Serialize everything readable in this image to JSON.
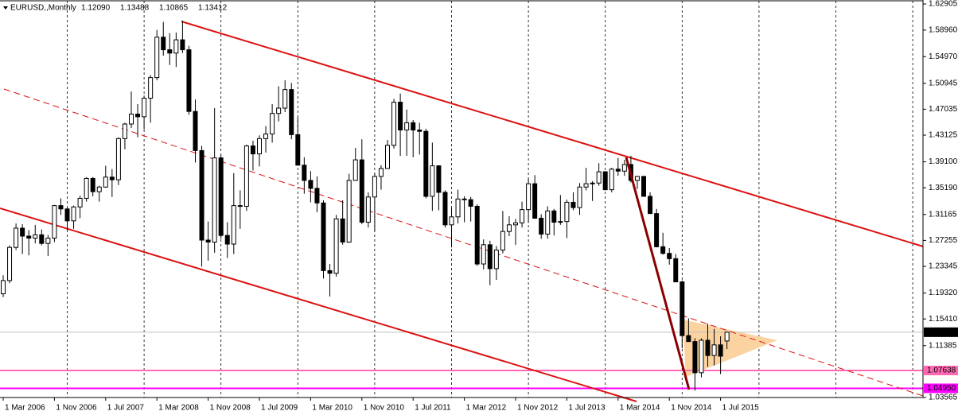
{
  "chart_data": {
    "type": "candlestick",
    "title": "EURUSD,,Monthly",
    "header_values": [
      "1.12090",
      "1.13488",
      "1.10865",
      "1.13412"
    ],
    "ylim": [
      1.03565,
      1.62905
    ],
    "yticks": [
      1.62905,
      {
        "value": 1.5896,
        "label": "1.58960"
      },
      {
        "value": 1.5497,
        "label": "1.54970"
      },
      {
        "value": 1.50945,
        "label": "1.50945"
      },
      {
        "value": 1.47035,
        "label": "1.47035"
      },
      1.43125,
      {
        "value": 1.391,
        "label": "1.39100"
      },
      {
        "value": 1.3519,
        "label": "1.35190"
      },
      1.31165,
      1.27255,
      1.23345,
      {
        "value": 1.1932,
        "label": "1.19320"
      },
      {
        "value": 1.1541,
        "label": "1.15410"
      },
      1.11385,
      1.03565
    ],
    "price_lines": [
      {
        "value": 1.13412,
        "label": "1.13412",
        "color": "#c0c0c0"
      },
      {
        "value": 1.07638,
        "label": "1.07638",
        "color": "#ff69b4"
      },
      {
        "value": 1.0495,
        "label": "1.04950",
        "color": "#ff00ff"
      }
    ],
    "x_labels": [
      "1 Mar 2006",
      "1 Nov 2006",
      "1 Jul 2007",
      "1 Mar 2008",
      "1 Nov 2008",
      "1 Jul 2009",
      "1 Mar 2010",
      "1 Nov 2010",
      "1 Jul 2011",
      "1 Mar 2012",
      "1 Nov 2012",
      "1 Jul 2013",
      "1 Mar 2014",
      "1 Nov 2014",
      "1 Jul 2015"
    ],
    "candles": [
      [
        1.192,
        1.22,
        1.187,
        1.212
      ],
      [
        1.212,
        1.265,
        1.208,
        1.262
      ],
      [
        1.262,
        1.298,
        1.258,
        1.291
      ],
      [
        1.291,
        1.297,
        1.252,
        1.279
      ],
      [
        1.279,
        1.288,
        1.25,
        1.276
      ],
      [
        1.276,
        1.296,
        1.268,
        1.281
      ],
      [
        1.281,
        1.289,
        1.265,
        1.268
      ],
      [
        1.268,
        1.281,
        1.249,
        1.276
      ],
      [
        1.276,
        1.326,
        1.27,
        1.325
      ],
      [
        1.325,
        1.336,
        1.311,
        1.32
      ],
      [
        1.32,
        1.322,
        1.287,
        1.302
      ],
      [
        1.302,
        1.325,
        1.29,
        1.323
      ],
      [
        1.323,
        1.34,
        1.306,
        1.336
      ],
      [
        1.336,
        1.368,
        1.331,
        1.366
      ],
      [
        1.366,
        1.368,
        1.339,
        1.346
      ],
      [
        1.346,
        1.355,
        1.331,
        1.353
      ],
      [
        1.353,
        1.385,
        1.352,
        1.368
      ],
      [
        1.368,
        1.38,
        1.338,
        1.364
      ],
      [
        1.364,
        1.428,
        1.356,
        1.426
      ],
      [
        1.426,
        1.45,
        1.41,
        1.448
      ],
      [
        1.448,
        1.497,
        1.442,
        1.463
      ],
      [
        1.463,
        1.478,
        1.428,
        1.459
      ],
      [
        1.459,
        1.491,
        1.44,
        1.487
      ],
      [
        1.487,
        1.522,
        1.45,
        1.518
      ],
      [
        1.518,
        1.59,
        1.514,
        1.579
      ],
      [
        1.579,
        1.602,
        1.551,
        1.56
      ],
      [
        1.56,
        1.585,
        1.537,
        1.555
      ],
      [
        1.555,
        1.586,
        1.534,
        1.575
      ],
      [
        1.575,
        1.604,
        1.555,
        1.56
      ],
      [
        1.56,
        1.566,
        1.462,
        1.467
      ],
      [
        1.467,
        1.485,
        1.39,
        1.408
      ],
      [
        1.408,
        1.415,
        1.233,
        1.273
      ],
      [
        1.273,
        1.301,
        1.242,
        1.27
      ],
      [
        1.27,
        1.472,
        1.254,
        1.397
      ],
      [
        1.397,
        1.401,
        1.275,
        1.28
      ],
      [
        1.28,
        1.3,
        1.246,
        1.267
      ],
      [
        1.267,
        1.374,
        1.252,
        1.325
      ],
      [
        1.325,
        1.348,
        1.29,
        1.324
      ],
      [
        1.324,
        1.417,
        1.317,
        1.415
      ],
      [
        1.415,
        1.423,
        1.378,
        1.403
      ],
      [
        1.403,
        1.431,
        1.384,
        1.426
      ],
      [
        1.426,
        1.445,
        1.405,
        1.433
      ],
      [
        1.433,
        1.478,
        1.42,
        1.464
      ],
      [
        1.464,
        1.505,
        1.452,
        1.472
      ],
      [
        1.472,
        1.514,
        1.466,
        1.5
      ],
      [
        1.5,
        1.51,
        1.425,
        1.432
      ],
      [
        1.432,
        1.458,
        1.386,
        1.386
      ],
      [
        1.386,
        1.398,
        1.343,
        1.363
      ],
      [
        1.363,
        1.377,
        1.33,
        1.351
      ],
      [
        1.351,
        1.369,
        1.315,
        1.329
      ],
      [
        1.329,
        1.333,
        1.215,
        1.227
      ],
      [
        1.227,
        1.237,
        1.188,
        1.223
      ],
      [
        1.223,
        1.311,
        1.218,
        1.305
      ],
      [
        1.305,
        1.333,
        1.266,
        1.27
      ],
      [
        1.27,
        1.373,
        1.269,
        1.363
      ],
      [
        1.363,
        1.412,
        1.366,
        1.394
      ],
      [
        1.394,
        1.425,
        1.297,
        1.3
      ],
      [
        1.3,
        1.345,
        1.292,
        1.338
      ],
      [
        1.338,
        1.374,
        1.286,
        1.369
      ],
      [
        1.369,
        1.386,
        1.349,
        1.381
      ],
      [
        1.381,
        1.424,
        1.386,
        1.416
      ],
      [
        1.416,
        1.486,
        1.411,
        1.481
      ],
      [
        1.481,
        1.494,
        1.4,
        1.439
      ],
      [
        1.439,
        1.47,
        1.4,
        1.45
      ],
      [
        1.45,
        1.454,
        1.398,
        1.439
      ],
      [
        1.439,
        1.45,
        1.402,
        1.437
      ],
      [
        1.437,
        1.441,
        1.336,
        1.339
      ],
      [
        1.339,
        1.42,
        1.317,
        1.385
      ],
      [
        1.385,
        1.386,
        1.318,
        1.345
      ],
      [
        1.345,
        1.348,
        1.292,
        1.296
      ],
      [
        1.296,
        1.322,
        1.262,
        1.308
      ],
      [
        1.308,
        1.349,
        1.298,
        1.335
      ],
      [
        1.335,
        1.339,
        1.3,
        1.334
      ],
      [
        1.334,
        1.338,
        1.301,
        1.324
      ],
      [
        1.324,
        1.327,
        1.234,
        1.237
      ],
      [
        1.237,
        1.274,
        1.229,
        1.266
      ],
      [
        1.266,
        1.272,
        1.205,
        1.23
      ],
      [
        1.23,
        1.264,
        1.213,
        1.258
      ],
      [
        1.258,
        1.317,
        1.253,
        1.286
      ],
      [
        1.286,
        1.309,
        1.279,
        1.296
      ],
      [
        1.296,
        1.305,
        1.266,
        1.299
      ],
      [
        1.299,
        1.331,
        1.292,
        1.319
      ],
      [
        1.319,
        1.366,
        1.299,
        1.358
      ],
      [
        1.358,
        1.371,
        1.305,
        1.306
      ],
      [
        1.306,
        1.312,
        1.275,
        1.282
      ],
      [
        1.282,
        1.324,
        1.275,
        1.317
      ],
      [
        1.317,
        1.32,
        1.28,
        1.3
      ],
      [
        1.3,
        1.341,
        1.296,
        1.301
      ],
      [
        1.301,
        1.334,
        1.276,
        1.33
      ],
      [
        1.33,
        1.345,
        1.318,
        1.322
      ],
      [
        1.322,
        1.359,
        1.311,
        1.353
      ],
      [
        1.353,
        1.382,
        1.348,
        1.358
      ],
      [
        1.358,
        1.362,
        1.332,
        1.359
      ],
      [
        1.359,
        1.389,
        1.355,
        1.376
      ],
      [
        1.376,
        1.377,
        1.348,
        1.349
      ],
      [
        1.349,
        1.382,
        1.345,
        1.38
      ],
      [
        1.38,
        1.397,
        1.37,
        1.377
      ],
      [
        1.377,
        1.394,
        1.37,
        1.387
      ],
      [
        1.387,
        1.4,
        1.36,
        1.363
      ],
      [
        1.363,
        1.37,
        1.35,
        1.369
      ],
      [
        1.369,
        1.37,
        1.339,
        1.339
      ],
      [
        1.339,
        1.345,
        1.313,
        1.313
      ],
      [
        1.313,
        1.32,
        1.262,
        1.263
      ],
      [
        1.263,
        1.284,
        1.251,
        1.253
      ],
      [
        1.253,
        1.261,
        1.236,
        1.245
      ],
      [
        1.245,
        1.252,
        1.21,
        1.21
      ],
      [
        1.21,
        1.212,
        1.11,
        1.129
      ],
      [
        1.129,
        1.155,
        1.12,
        1.12
      ],
      [
        1.12,
        1.125,
        1.046,
        1.073
      ],
      [
        1.073,
        1.125,
        1.066,
        1.122
      ],
      [
        1.122,
        1.147,
        1.082,
        1.099
      ],
      [
        1.099,
        1.139,
        1.084,
        1.115
      ],
      [
        1.115,
        1.128,
        1.071,
        1.098
      ],
      [
        1.1209,
        1.13488,
        1.10865,
        1.13412
      ]
    ]
  }
}
